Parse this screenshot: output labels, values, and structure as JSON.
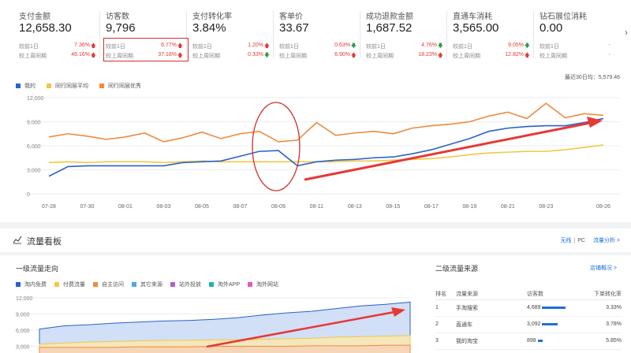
{
  "kpis": [
    {
      "title": "支付金额",
      "value": "12,658.30",
      "r1": "较前1日",
      "p1": "7.36%",
      "a1": "up",
      "r2": "较上周同期",
      "p2": "46.16%",
      "a2": "up"
    },
    {
      "title": "访客数",
      "value": "9,796",
      "r1": "较前1日",
      "p1": "6.77%",
      "a1": "up",
      "r2": "较上周同期",
      "p2": "37.18%",
      "a2": "up"
    },
    {
      "title": "支付转化率",
      "value": "3.84%",
      "r1": "较前1日",
      "p1": "1.20%",
      "a1": "up",
      "r2": "较上周同期",
      "p2": "0.33%",
      "a2": "down"
    },
    {
      "title": "客单价",
      "value": "33.67",
      "r1": "较前1日",
      "p1": "0.63%",
      "a1": "down",
      "r2": "较上周同期",
      "p2": "6.90%",
      "a2": "up"
    },
    {
      "title": "成功退款金额",
      "value": "1,687.52",
      "r1": "较前1日",
      "p1": "4.76%",
      "a1": "down",
      "r2": "较上周同期",
      "p2": "18.23%",
      "a2": "up"
    },
    {
      "title": "直通车消耗",
      "value": "3,565.00",
      "r1": "较前1日",
      "p1": "9.05%",
      "a1": "down",
      "r2": "较上周同期",
      "p2": "12.82%",
      "a2": "up"
    },
    {
      "title": "钻石展位消耗",
      "value": "0.00",
      "r1": "较前1日",
      "p1": "-",
      "a1": "",
      "r2": "较上周同期",
      "p2": "-",
      "a2": ""
    }
  ],
  "legend_top": [
    {
      "name": "我的",
      "color": "#2a62c9"
    },
    {
      "name": "同行同层平均",
      "color": "#f2c744"
    },
    {
      "name": "同行同层优秀",
      "color": "#ef8a3c"
    }
  ],
  "date_note": "最近30日均：5,579.46",
  "chart_data": [
    {
      "type": "line",
      "x": [
        "07-28",
        "07-29",
        "07-30",
        "07-31",
        "08-01",
        "08-02",
        "08-03",
        "08-04",
        "08-05",
        "08-06",
        "08-07",
        "08-08",
        "08-09",
        "08-10",
        "08-11",
        "08-12",
        "08-13",
        "08-14",
        "08-15",
        "08-16",
        "08-17",
        "08-18",
        "08-19",
        "08-20",
        "08-21",
        "08-22",
        "08-23",
        "08-24",
        "08-25",
        "08-26"
      ],
      "xticks": [
        "07-28",
        "07-30",
        "08-01",
        "08-03",
        "08-05",
        "08-07",
        "08-09",
        "08-11",
        "08-13",
        "08-15",
        "08-17",
        "08-19",
        "08-21",
        "08-23",
        "08-26"
      ],
      "yticks": [
        "0",
        "3,000",
        "6,000",
        "9,000",
        "12,000"
      ],
      "ylim": [
        0,
        12000
      ],
      "series": [
        {
          "name": "我的",
          "color": "#2a62c9",
          "values": [
            2200,
            3400,
            3500,
            3500,
            3500,
            3500,
            3500,
            3900,
            4000,
            4100,
            4700,
            5300,
            5400,
            3500,
            4000,
            4200,
            4300,
            4500,
            4600,
            5000,
            5500,
            6200,
            6900,
            7800,
            8200,
            8400,
            8500,
            8500,
            8900,
            9400
          ]
        },
        {
          "name": "同行同层平均",
          "color": "#f2c744",
          "values": [
            3900,
            4000,
            3900,
            4000,
            4000,
            4000,
            3900,
            4000,
            4100,
            4000,
            4000,
            4000,
            4000,
            4000,
            4000,
            4000,
            4100,
            4100,
            4200,
            4300,
            4400,
            4600,
            4900,
            5100,
            5200,
            5300,
            5300,
            5500,
            5800,
            6100
          ]
        },
        {
          "name": "同行同层优秀",
          "color": "#ef8a3c",
          "values": [
            7100,
            7500,
            7200,
            6800,
            7100,
            7600,
            6500,
            7000,
            7700,
            6900,
            7500,
            7800,
            6500,
            6700,
            8900,
            7300,
            7600,
            7800,
            7500,
            8200,
            8500,
            8700,
            9000,
            9700,
            10200,
            9400,
            11300,
            9500,
            10000,
            9800
          ]
        }
      ]
    },
    {
      "type": "area",
      "yticks": [
        "0",
        "3,000",
        "6,000",
        "9,000",
        "12,000"
      ],
      "ylim": [
        0,
        12000
      ],
      "series": [
        {
          "name": "淘内免费",
          "color": "#2a62c9",
          "values": [
            6200,
            6800,
            7000,
            7300,
            7500,
            7700,
            7800,
            8000,
            8300,
            8800,
            9200,
            9500,
            10000,
            10500,
            10800,
            11200
          ]
        },
        {
          "name": "付费流量",
          "color": "#f2c744",
          "values": [
            3400,
            3600,
            3800,
            3900,
            4000,
            4100,
            4100,
            4200,
            4200,
            4300,
            4400,
            4500,
            4700,
            4800,
            4900,
            5000
          ]
        },
        {
          "name": "自主访问",
          "color": "#ef8a3c",
          "values": [
            2800,
            2800,
            2800,
            2800,
            2900,
            2900,
            2900,
            3000,
            3000,
            3000,
            3000,
            3100,
            3100,
            3100,
            3200,
            3200
          ]
        }
      ]
    }
  ],
  "legend_bottom": [
    {
      "name": "淘内免费",
      "color": "#2a62c9"
    },
    {
      "name": "付费流量",
      "color": "#f2c744"
    },
    {
      "name": "自主访问",
      "color": "#ef8a3c"
    },
    {
      "name": "其它来源",
      "color": "#4ea8e6"
    },
    {
      "name": "站外投放",
      "color": "#b35fd1"
    },
    {
      "name": "淘外APP",
      "color": "#1fb5a8"
    },
    {
      "name": "淘外网站",
      "color": "#e35ab7"
    }
  ],
  "flow_panel": {
    "title": "流量看板",
    "link_wireless": "无线",
    "link_pc": "PC",
    "link_analysis": "流量分析 >"
  },
  "level1": {
    "title": "一级流量走向"
  },
  "level2": {
    "title": "二级流量来源",
    "link": "店铺概况 >",
    "headers": [
      "排名",
      "流量来源",
      "访客数",
      "下单转化率"
    ],
    "rows": [
      {
        "rank": "1",
        "source": "手淘搜索",
        "visitors": "4,689",
        "bar": 0.75,
        "rate": "3.33%"
      },
      {
        "rank": "2",
        "source": "直通车",
        "visitors": "3,092",
        "bar": 0.5,
        "rate": "3.78%"
      },
      {
        "rank": "3",
        "source": "我的淘宝",
        "visitors": "898",
        "bar": 0.14,
        "rate": "5.85%"
      }
    ]
  }
}
